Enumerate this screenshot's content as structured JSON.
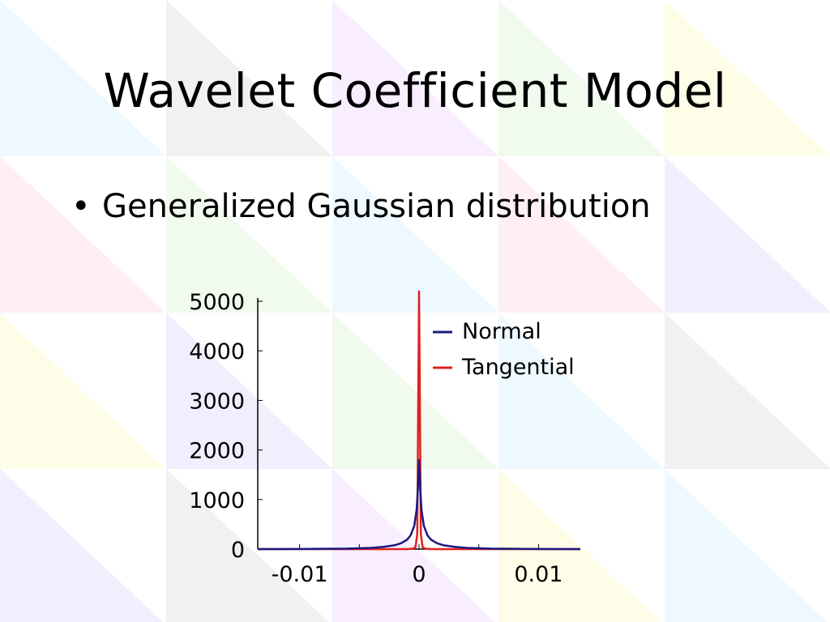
{
  "slide": {
    "title": "Wavelet Coefficient Model",
    "bullets": [
      {
        "bullet_char": "•",
        "text": "Generalized Gaussian distribution"
      }
    ]
  },
  "colors": {
    "normal_series": "#1a1a80",
    "tangential_series": "#e02020",
    "axis": "#000000",
    "background_tile_palette": [
      "#dff4ff",
      "#ffe0ea",
      "#f3e0ff",
      "#e5f7df",
      "#fdfbd6",
      "#e6e6e6",
      "#e3e3fb"
    ]
  },
  "chart_data": {
    "type": "line",
    "title": "",
    "xlabel": "",
    "ylabel": "",
    "xlim": [
      -0.0135,
      0.0135
    ],
    "ylim": [
      0,
      5000
    ],
    "x_ticks": [
      -0.01,
      0,
      0.01
    ],
    "x_tick_labels": [
      "-0.01",
      "0",
      "0.01"
    ],
    "x_minor_ticks": [
      -0.005,
      0.005
    ],
    "y_ticks": [
      0,
      1000,
      2000,
      3000,
      4000,
      5000
    ],
    "y_tick_labels": [
      "0",
      "1000",
      "2000",
      "3000",
      "4000",
      "5000"
    ],
    "grid": false,
    "legend_position": "top-right",
    "series": [
      {
        "name": "Normal",
        "color": "#1a1a80",
        "x": [
          -0.0135,
          -0.01,
          -0.006,
          -0.004,
          -0.003,
          -0.002,
          -0.0015,
          -0.001,
          -0.0007,
          -0.0004,
          -0.0002,
          -0.0001,
          0,
          0.0001,
          0.0002,
          0.0004,
          0.0007,
          0.001,
          0.0015,
          0.002,
          0.003,
          0.004,
          0.006,
          0.01,
          0.0135
        ],
        "y": [
          0,
          2,
          10,
          25,
          45,
          80,
          120,
          190,
          280,
          470,
          800,
          1200,
          1800,
          1200,
          800,
          470,
          280,
          190,
          120,
          80,
          45,
          25,
          10,
          2,
          0
        ]
      },
      {
        "name": "Tangential",
        "color": "#e02020",
        "x": [
          -0.0135,
          -0.001,
          -0.0005,
          -0.0003,
          -0.00015,
          0,
          0.00015,
          0.0003,
          0.0005,
          0.001,
          0.0135
        ],
        "y": [
          0,
          0,
          10,
          40,
          300,
          5200,
          300,
          40,
          10,
          0,
          0
        ]
      }
    ]
  }
}
